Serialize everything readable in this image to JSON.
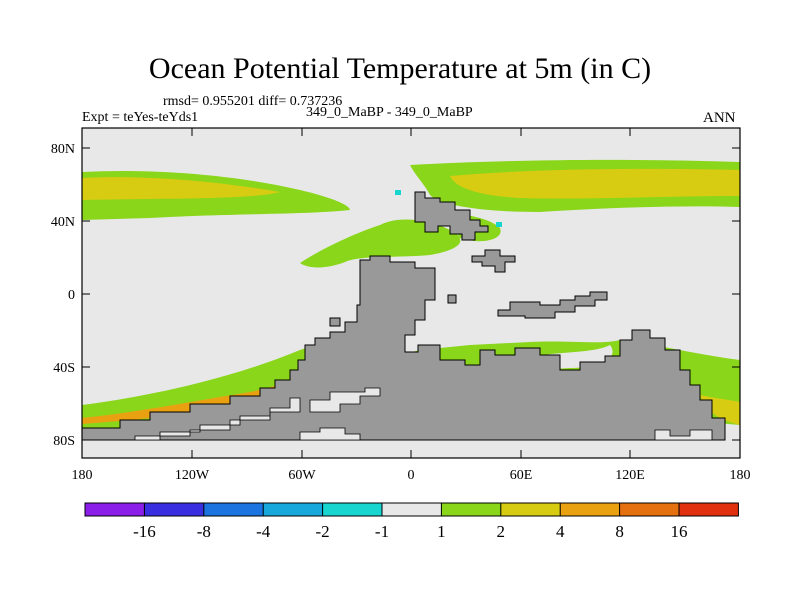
{
  "plot": {
    "title": "Ocean Potential Temperature at 5m (in C)",
    "stats": "rmsd= 0.955201 diff= 0.737236",
    "experiment": "Expt = teYes-teYds1",
    "period": "349_0_MaBP - 349_0_MaBP",
    "season": "ANN"
  },
  "axes": {
    "lat_labels": [
      "80N",
      "40N",
      "0",
      "40S",
      "80S"
    ],
    "lon_labels": [
      "180",
      "120W",
      "60W",
      "0",
      "60E",
      "120E",
      "180"
    ],
    "lat_range": [
      -90,
      90
    ],
    "lon_range": [
      -180,
      180
    ]
  },
  "colorbar": {
    "labels": [
      "-16",
      "-8",
      "-4",
      "-2",
      "-1",
      "1",
      "2",
      "4",
      "8",
      "16"
    ],
    "colors": [
      "#8c1eea",
      "#3a2fe0",
      "#1b74df",
      "#18a8dc",
      "#18d6cf",
      "#e8e8e8",
      "#8ad61a",
      "#d8cc12",
      "#e9a112",
      "#e5700f",
      "#e0300e"
    ]
  },
  "colors": {
    "ocean_neutral": "#e8e8e8",
    "land": "#999999",
    "warm_small": "#8ad61a",
    "warm_medium": "#d8cc12",
    "warm_large": "#e9a112",
    "cool_small": "#18d6cf"
  }
}
